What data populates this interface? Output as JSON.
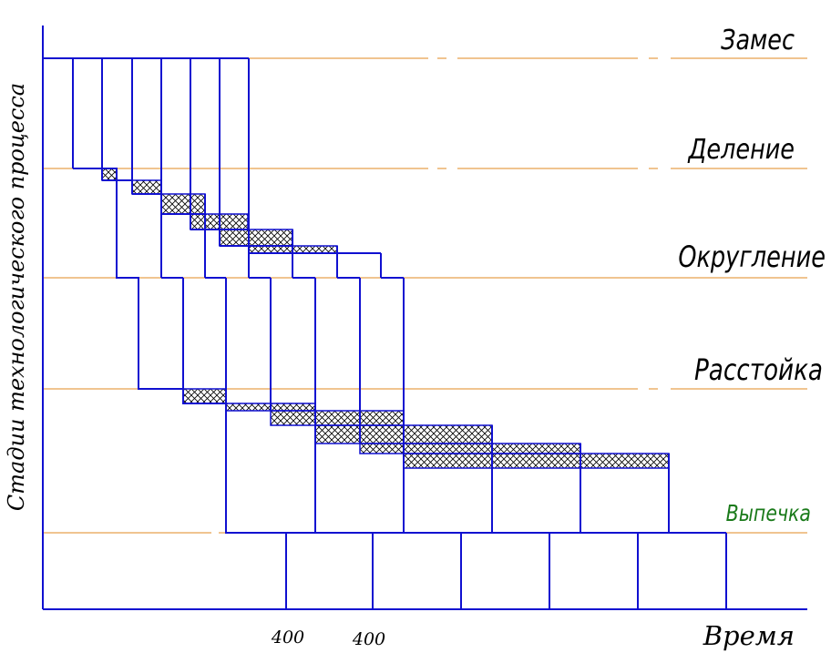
{
  "axes": {
    "x_label": "Время",
    "y_label": "Стадии технологического процесса",
    "tick_labels": [
      "400",
      "400"
    ]
  },
  "stages": [
    {
      "label": "Замес"
    },
    {
      "label": "Деление"
    },
    {
      "label": "Округление"
    },
    {
      "label": "Расстойка"
    },
    {
      "label": "Выпечка",
      "color": "#1a7a1a"
    }
  ],
  "colors": {
    "process_lines": "#1010d0",
    "stage_guides": "#e08a20",
    "hatch": "#000000"
  }
}
